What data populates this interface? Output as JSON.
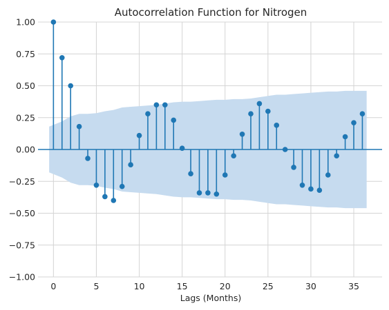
{
  "chart_data": {
    "type": "stem",
    "title": "Autocorrelation Function for Nitrogen",
    "xlabel": "Lags (Months)",
    "ylabel": "",
    "xlim": [
      -1.8,
      38.3
    ],
    "ylim": [
      -1.0,
      1.0
    ],
    "xticks": [
      0,
      5,
      10,
      15,
      20,
      25,
      30,
      35
    ],
    "yticks": [
      -1.0,
      -0.75,
      -0.5,
      -0.25,
      0.0,
      0.25,
      0.5,
      0.75,
      1.0
    ],
    "ytick_labels": [
      "−1.00",
      "−0.75",
      "−0.50",
      "−0.25",
      "0.00",
      "0.25",
      "0.50",
      "0.75",
      "1.00"
    ],
    "xtick_labels": [
      "0",
      "5",
      "10",
      "15",
      "20",
      "25",
      "30",
      "35"
    ],
    "grid": true,
    "series": [
      {
        "color": "#1f77b4",
        "x": [
          0,
          1,
          2,
          3,
          4,
          5,
          6,
          7,
          8,
          9,
          10,
          11,
          12,
          13,
          14,
          15,
          16,
          17,
          18,
          19,
          20,
          21,
          22,
          23,
          24,
          25,
          26,
          27,
          28,
          29,
          30,
          31,
          32,
          33,
          34,
          35,
          36
        ],
        "values": [
          1.0,
          0.72,
          0.5,
          0.18,
          -0.07,
          -0.28,
          -0.37,
          -0.4,
          -0.29,
          -0.12,
          0.11,
          0.28,
          0.35,
          0.35,
          0.23,
          0.01,
          -0.19,
          -0.34,
          -0.34,
          -0.35,
          -0.2,
          -0.05,
          0.12,
          0.28,
          0.36,
          0.3,
          0.19,
          0.0,
          -0.14,
          -0.28,
          -0.31,
          -0.32,
          -0.2,
          -0.05,
          0.1,
          0.21,
          0.28
        ]
      }
    ],
    "confidence_band": {
      "color": "#c6dbef",
      "x": [
        0,
        1,
        2,
        3,
        4,
        5,
        6,
        7,
        8,
        9,
        10,
        11,
        12,
        13,
        14,
        15,
        16,
        17,
        18,
        19,
        20,
        21,
        22,
        23,
        24,
        25,
        26,
        27,
        28,
        29,
        30,
        31,
        32,
        33,
        34,
        35,
        36
      ],
      "upper": [
        0.18,
        0.22,
        0.26,
        0.28,
        0.28,
        0.285,
        0.3,
        0.31,
        0.33,
        0.335,
        0.34,
        0.345,
        0.35,
        0.36,
        0.37,
        0.375,
        0.375,
        0.38,
        0.385,
        0.39,
        0.39,
        0.395,
        0.395,
        0.4,
        0.41,
        0.42,
        0.43,
        0.43,
        0.435,
        0.44,
        0.445,
        0.45,
        0.455,
        0.455,
        0.46,
        0.46,
        0.46
      ]
    }
  }
}
